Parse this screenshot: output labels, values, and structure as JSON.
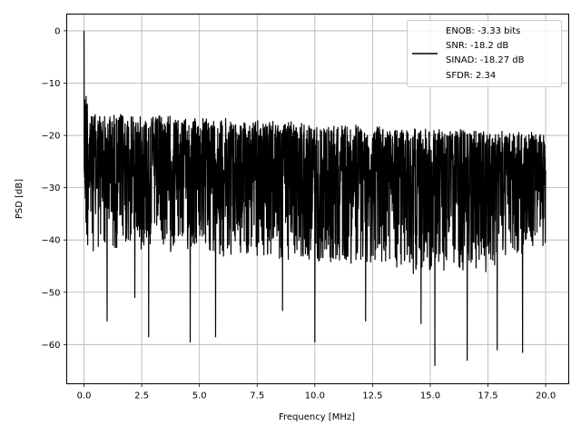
{
  "chart_data": {
    "type": "line",
    "title": "",
    "xlabel": "Frequency [MHz]",
    "ylabel": "PSD [dB]",
    "xlim": [
      -0.75,
      21.0
    ],
    "ylim": [
      -67.5,
      3.2
    ],
    "xticks": [
      0.0,
      2.5,
      5.0,
      7.5,
      10.0,
      12.5,
      15.0,
      17.5,
      20.0
    ],
    "xtick_labels": [
      "0.0",
      "2.5",
      "5.0",
      "7.5",
      "10.0",
      "12.5",
      "15.0",
      "17.5",
      "20.0"
    ],
    "yticks": [
      0,
      -10,
      -20,
      -30,
      -40,
      -50,
      -60
    ],
    "ytick_labels": [
      "0",
      "−10",
      "−20",
      "−30",
      "−40",
      "−50",
      "−60"
    ],
    "grid": true,
    "legend_position": "top-right",
    "series": [
      {
        "color": "#000000",
        "peak": {
          "x": 0.0,
          "y": 0.0
        },
        "upper_envelope": [
          [
            0.05,
            -10
          ],
          [
            0.3,
            -15.5
          ],
          [
            2.5,
            -16
          ],
          [
            5,
            -16.5
          ],
          [
            7.5,
            -17
          ],
          [
            10,
            -17.5
          ],
          [
            12.5,
            -18
          ],
          [
            15,
            -18.5
          ],
          [
            17.5,
            -19
          ],
          [
            20,
            -19.5
          ]
        ],
        "lower_envelope": [
          [
            0.1,
            -43
          ],
          [
            2.5,
            -42
          ],
          [
            5,
            -43
          ],
          [
            7.5,
            -44
          ],
          [
            10,
            -45
          ],
          [
            12.5,
            -46
          ],
          [
            15,
            -47
          ],
          [
            17.5,
            -46
          ],
          [
            20,
            -41
          ]
        ],
        "dips": [
          [
            1.0,
            -55.5
          ],
          [
            2.2,
            -51.0
          ],
          [
            2.8,
            -58.5
          ],
          [
            4.6,
            -59.5
          ],
          [
            5.7,
            -58.5
          ],
          [
            8.6,
            -53.5
          ],
          [
            10.0,
            -59.5
          ],
          [
            12.2,
            -55.5
          ],
          [
            14.6,
            -56.0
          ],
          [
            15.2,
            -64.0
          ],
          [
            16.6,
            -63.0
          ],
          [
            17.9,
            -61.0
          ],
          [
            19.0,
            -61.5
          ]
        ]
      }
    ],
    "legend_lines": [
      "ENOB: -3.33 bits",
      "SNR: -18.2 dB",
      "SINAD: -18.27 dB",
      "SFDR: 2.34"
    ]
  }
}
